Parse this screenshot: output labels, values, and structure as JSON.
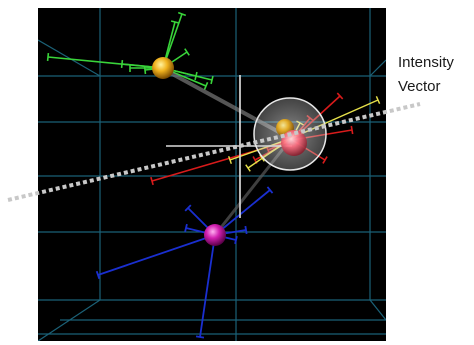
{
  "callout": {
    "line1": "Intensity",
    "line2": "Vector"
  },
  "colors": {
    "background": "#000000",
    "grid": "#1f6c84",
    "node_gold": "#f0b21e",
    "node_pink": "#ff6d80",
    "node_magenta": "#d21fb0",
    "green_links": "#39d43a",
    "red_links": "#d81b1b",
    "yellow_links": "#e6e04a",
    "blue_links": "#1a2fd0",
    "intensity_vector": "#c8c8c8",
    "highlight_halo": "#d8d8d8"
  },
  "nodes": [
    {
      "name": "gold-node"
    },
    {
      "name": "highlighted-node"
    },
    {
      "name": "magenta-node"
    }
  ]
}
